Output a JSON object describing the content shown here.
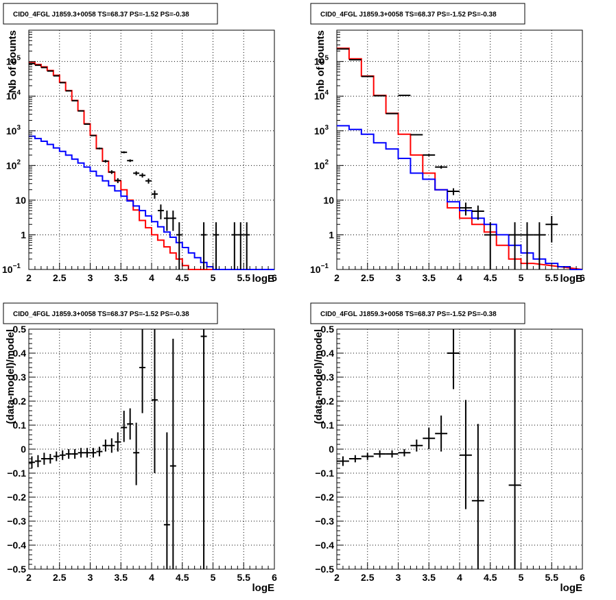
{
  "chart_data": [
    {
      "type": "histogram",
      "title": "CID0_4FGL J1859.3+0058 TS=68.37 PS=-1.52 PS=-0.38",
      "xlabel": "logE",
      "ylabel": "Nb of counts",
      "xlim": [
        2,
        6
      ],
      "ylim": [
        0.1,
        800000
      ],
      "yscale": "log",
      "xticks": [
        "2",
        "2.5",
        "3",
        "3.5",
        "4",
        "4.5",
        "5",
        "5.5",
        "6"
      ],
      "yticks": [
        {
          "value": 0.1,
          "base": "10",
          "exp": "−1"
        },
        {
          "value": 1,
          "base": "1",
          "exp": ""
        },
        {
          "value": 10,
          "base": "10",
          "exp": ""
        },
        {
          "value": 100,
          "base": "10",
          "exp": "2"
        },
        {
          "value": 1000,
          "base": "10",
          "exp": "3"
        },
        {
          "value": 10000,
          "base": "10",
          "exp": "4"
        },
        {
          "value": 100000,
          "base": "10",
          "exp": "5"
        }
      ],
      "grid": true,
      "series": [
        {
          "color": "#ff0000",
          "kind": "step",
          "x0": 2.0,
          "dx": 0.1,
          "values": [
            92000,
            82000,
            70000,
            55000,
            40000,
            25000,
            14500,
            7500,
            3800,
            1600,
            740,
            305,
            133,
            64,
            36,
            20,
            10,
            5.2,
            2.6,
            1.6,
            1.0,
            0.7,
            0.45,
            0.3,
            0.2,
            0.13,
            0.1
          ]
        },
        {
          "color": "#0000ff",
          "kind": "step",
          "x0": 2.0,
          "dx": 0.1,
          "values": [
            700,
            600,
            500,
            405,
            322,
            255,
            198,
            152,
            118,
            90,
            68,
            50,
            36,
            26,
            18.5,
            13,
            9.5,
            6.8,
            5.0,
            3.5,
            2.4,
            1.7,
            1.2,
            0.85,
            0.6,
            0.43,
            0.3,
            0.22,
            0.16,
            0.12,
            0.1
          ]
        },
        {
          "color": "#000000",
          "kind": "points",
          "points": [
            {
              "x": 2.05,
              "y": 87000,
              "lo": 86500,
              "hi": 87500
            },
            {
              "x": 2.15,
              "y": 78000,
              "lo": 77500,
              "hi": 78500
            },
            {
              "x": 2.25,
              "y": 67000,
              "lo": 66500,
              "hi": 67500
            },
            {
              "x": 2.35,
              "y": 53000,
              "lo": 52500,
              "hi": 53500
            },
            {
              "x": 2.45,
              "y": 38500,
              "lo": 38200,
              "hi": 38800
            },
            {
              "x": 2.55,
              "y": 24500,
              "lo": 24300,
              "hi": 24700
            },
            {
              "x": 2.65,
              "y": 14200,
              "lo": 14050,
              "hi": 14350
            },
            {
              "x": 2.75,
              "y": 7400,
              "lo": 7300,
              "hi": 7500
            },
            {
              "x": 2.85,
              "y": 3750,
              "lo": 3700,
              "hi": 3800
            },
            {
              "x": 2.95,
              "y": 1560,
              "lo": 1520,
              "hi": 1600
            },
            {
              "x": 3.05,
              "y": 730,
              "lo": 705,
              "hi": 755
            },
            {
              "x": 3.15,
              "y": 310,
              "lo": 292,
              "hi": 328
            },
            {
              "x": 3.25,
              "y": 133,
              "lo": 121,
              "hi": 145
            },
            {
              "x": 3.35,
              "y": 65,
              "lo": 57,
              "hi": 73
            },
            {
              "x": 3.45,
              "y": 37,
              "lo": 31,
              "hi": 43
            },
            {
              "x": 3.55,
              "y": 240,
              "lo": 225,
              "hi": 256
            },
            {
              "x": 3.65,
              "y": 138,
              "lo": 126,
              "hi": 150
            },
            {
              "x": 3.75,
              "y": 60,
              "lo": 52,
              "hi": 68
            },
            {
              "x": 3.85,
              "y": 52,
              "lo": 45,
              "hi": 60
            },
            {
              "x": 3.95,
              "y": 36,
              "lo": 30,
              "hi": 42
            },
            {
              "x": 4.05,
              "y": 15,
              "lo": 11,
              "hi": 19
            },
            {
              "x": 4.15,
              "y": 5,
              "lo": 2.8,
              "hi": 7.5
            },
            {
              "x": 4.25,
              "y": 3,
              "lo": 1.3,
              "hi": 5
            },
            {
              "x": 4.35,
              "y": 3,
              "lo": 1.3,
              "hi": 5
            },
            {
              "x": 4.45,
              "y": 1,
              "lo": 0.1,
              "hi": 2.3
            },
            {
              "x": 4.85,
              "y": 1,
              "lo": 0.1,
              "hi": 2.3
            },
            {
              "x": 5.05,
              "y": 1,
              "lo": 0.1,
              "hi": 2.3
            },
            {
              "x": 5.35,
              "y": 1,
              "lo": 0.1,
              "hi": 2.3
            },
            {
              "x": 5.45,
              "y": 1,
              "lo": 0.1,
              "hi": 2.3
            },
            {
              "x": 5.55,
              "y": 1,
              "lo": 0.1,
              "hi": 2.3
            }
          ]
        }
      ]
    },
    {
      "type": "histogram",
      "title": "CID0_4FGL J1859.3+0058 TS=68.37 PS=-1.52 PS=-0.38",
      "xlabel": "logE",
      "ylabel": "nb of counts",
      "xlim": [
        2,
        6
      ],
      "ylim": [
        0.1,
        800000
      ],
      "yscale": "log",
      "xticks": [
        "2",
        "2.5",
        "3",
        "3.5",
        "4",
        "4.5",
        "5",
        "5.5",
        "6"
      ],
      "yticks": [
        {
          "value": 0.1,
          "base": "10",
          "exp": "−1"
        },
        {
          "value": 1,
          "base": "1",
          "exp": ""
        },
        {
          "value": 10,
          "base": "10",
          "exp": ""
        },
        {
          "value": 100,
          "base": "10",
          "exp": "2"
        },
        {
          "value": 1000,
          "base": "10",
          "exp": "3"
        },
        {
          "value": 10000,
          "base": "10",
          "exp": "4"
        },
        {
          "value": 100000,
          "base": "10",
          "exp": "5"
        }
      ],
      "grid": true,
      "series": [
        {
          "color": "#ff0000",
          "kind": "step",
          "x0": 2.0,
          "dx": 0.2,
          "values": [
            240000,
            120000,
            38000,
            10500,
            3200,
            800,
            200,
            60,
            20,
            6,
            3,
            2,
            1.2,
            0.5,
            0.2,
            0.15
          ]
        },
        {
          "color": "#0000ff",
          "kind": "step",
          "x0": 2.0,
          "dx": 0.2,
          "values": [
            1400,
            1100,
            800,
            450,
            300,
            160,
            60,
            40,
            20,
            9,
            5,
            3,
            2,
            1,
            0.5,
            0.3,
            0.2,
            0.15,
            0.12,
            0.1
          ]
        },
        {
          "color": "#000000",
          "kind": "points",
          "points": [
            {
              "x": 2.1,
              "y": 230000,
              "lo": 229000,
              "hi": 231000
            },
            {
              "x": 2.3,
              "y": 112000,
              "lo": 111500,
              "hi": 112500
            },
            {
              "x": 2.5,
              "y": 37000,
              "lo": 36800,
              "hi": 37200
            },
            {
              "x": 2.7,
              "y": 10300,
              "lo": 10200,
              "hi": 10400
            },
            {
              "x": 2.9,
              "y": 3150,
              "lo": 3100,
              "hi": 3200
            },
            {
              "x": 3.1,
              "y": 10500,
              "lo": 10400,
              "hi": 10600
            },
            {
              "x": 3.3,
              "y": 770,
              "lo": 745,
              "hi": 795
            },
            {
              "x": 3.5,
              "y": 200,
              "lo": 186,
              "hi": 214
            },
            {
              "x": 3.7,
              "y": 90,
              "lo": 81,
              "hi": 99
            },
            {
              "x": 3.9,
              "y": 18,
              "lo": 14,
              "hi": 22
            },
            {
              "x": 4.1,
              "y": 6,
              "lo": 3.6,
              "hi": 8.5
            },
            {
              "x": 4.3,
              "y": 4.8,
              "lo": 2.7,
              "hi": 7
            },
            {
              "x": 4.5,
              "y": 1,
              "lo": 0.1,
              "hi": 2.3
            },
            {
              "x": 4.9,
              "y": 1,
              "lo": 0.1,
              "hi": 2.3
            },
            {
              "x": 5.1,
              "y": 1,
              "lo": 0.1,
              "hi": 2.3
            },
            {
              "x": 5.3,
              "y": 1,
              "lo": 0.1,
              "hi": 2.3
            },
            {
              "x": 5.5,
              "y": 2,
              "lo": 0.6,
              "hi": 3.5
            }
          ]
        }
      ]
    },
    {
      "type": "scatter",
      "title": "CID0_4FGL J1859.3+0058 TS=68.37 PS=-1.52 PS=-0.38",
      "xlabel": "logE",
      "ylabel": "(data-model)/model",
      "xlim": [
        2,
        6
      ],
      "ylim": [
        -0.5,
        0.5
      ],
      "yscale": "linear",
      "xticks": [
        "2",
        "2.5",
        "3",
        "3.5",
        "4",
        "4.5",
        "5",
        "5.5",
        "6"
      ],
      "yticks": [
        {
          "value": -0.5,
          "label": "−0.5"
        },
        {
          "value": -0.4,
          "label": "−0.4"
        },
        {
          "value": -0.3,
          "label": "−0.3"
        },
        {
          "value": -0.2,
          "label": "−0.2"
        },
        {
          "value": -0.1,
          "label": "−0.1"
        },
        {
          "value": 0,
          "label": "0"
        },
        {
          "value": 0.1,
          "label": "0.1"
        },
        {
          "value": 0.2,
          "label": "0.2"
        },
        {
          "value": 0.3,
          "label": "0.3"
        },
        {
          "value": 0.4,
          "label": "0.4"
        },
        {
          "value": 0.5,
          "label": "0.5"
        }
      ],
      "grid": true,
      "series": [
        {
          "color": "#000000",
          "kind": "points",
          "halfwidth": 0.05,
          "points": [
            {
              "x": 2.05,
              "y": -0.055,
              "lo": -0.08,
              "hi": -0.03
            },
            {
              "x": 2.15,
              "y": -0.05,
              "lo": -0.075,
              "hi": -0.025
            },
            {
              "x": 2.25,
              "y": -0.04,
              "lo": -0.065,
              "hi": -0.015
            },
            {
              "x": 2.35,
              "y": -0.04,
              "lo": -0.06,
              "hi": -0.02
            },
            {
              "x": 2.45,
              "y": -0.03,
              "lo": -0.05,
              "hi": -0.01
            },
            {
              "x": 2.55,
              "y": -0.025,
              "lo": -0.045,
              "hi": -0.005
            },
            {
              "x": 2.65,
              "y": -0.02,
              "lo": -0.04,
              "hi": 0.0
            },
            {
              "x": 2.75,
              "y": -0.02,
              "lo": -0.04,
              "hi": 0.0
            },
            {
              "x": 2.85,
              "y": -0.015,
              "lo": -0.035,
              "hi": 0.005
            },
            {
              "x": 2.95,
              "y": -0.015,
              "lo": -0.035,
              "hi": 0.005
            },
            {
              "x": 3.05,
              "y": -0.015,
              "lo": -0.035,
              "hi": 0.005
            },
            {
              "x": 3.15,
              "y": -0.01,
              "lo": -0.03,
              "hi": 0.01
            },
            {
              "x": 3.25,
              "y": 0.015,
              "lo": -0.01,
              "hi": 0.04
            },
            {
              "x": 3.35,
              "y": 0.015,
              "lo": -0.015,
              "hi": 0.045
            },
            {
              "x": 3.45,
              "y": 0.03,
              "lo": -0.01,
              "hi": 0.07
            },
            {
              "x": 3.55,
              "y": 0.09,
              "lo": 0.03,
              "hi": 0.16
            },
            {
              "x": 3.65,
              "y": 0.105,
              "lo": 0.04,
              "hi": 0.17
            },
            {
              "x": 3.75,
              "y": -0.015,
              "lo": -0.15,
              "hi": 0.11
            },
            {
              "x": 3.85,
              "y": 0.34,
              "lo": 0.15,
              "hi": 0.5
            },
            {
              "x": 4.05,
              "y": 0.205,
              "lo": -0.1,
              "hi": 0.5
            },
            {
              "x": 4.25,
              "y": -0.315,
              "lo": -0.5,
              "hi": 0.07
            },
            {
              "x": 4.35,
              "y": -0.07,
              "lo": -0.5,
              "hi": 0.46
            },
            {
              "x": 4.85,
              "y": 0.47,
              "lo": -0.5,
              "hi": 0.5
            }
          ]
        }
      ]
    },
    {
      "type": "scatter",
      "title": "CID0_4FGL J1859.3+0058 TS=68.37 PS=-1.52 PS=-0.38",
      "xlabel": "logE",
      "ylabel": "(data-model)/model",
      "xlim": [
        2,
        6
      ],
      "ylim": [
        -0.5,
        0.5
      ],
      "yscale": "linear",
      "xticks": [
        "2",
        "2.5",
        "3",
        "3.5",
        "4",
        "4.5",
        "5",
        "5.5",
        "6"
      ],
      "yticks": [
        {
          "value": -0.5,
          "label": "−0.5"
        },
        {
          "value": -0.4,
          "label": "−0.4"
        },
        {
          "value": -0.3,
          "label": "−0.3"
        },
        {
          "value": -0.2,
          "label": "−0.2"
        },
        {
          "value": -0.1,
          "label": "−0.1"
        },
        {
          "value": 0,
          "label": "0"
        },
        {
          "value": 0.1,
          "label": "0.1"
        },
        {
          "value": 0.2,
          "label": "0.2"
        },
        {
          "value": 0.3,
          "label": "0.3"
        },
        {
          "value": 0.4,
          "label": "0.4"
        },
        {
          "value": 0.5,
          "label": "0.5"
        }
      ],
      "grid": true,
      "series": [
        {
          "color": "#000000",
          "kind": "points",
          "halfwidth": 0.1,
          "points": [
            {
              "x": 2.1,
              "y": -0.05,
              "lo": -0.07,
              "hi": -0.03
            },
            {
              "x": 2.3,
              "y": -0.04,
              "lo": -0.055,
              "hi": -0.025
            },
            {
              "x": 2.5,
              "y": -0.03,
              "lo": -0.045,
              "hi": -0.015
            },
            {
              "x": 2.7,
              "y": -0.02,
              "lo": -0.035,
              "hi": -0.005
            },
            {
              "x": 2.9,
              "y": -0.02,
              "lo": -0.035,
              "hi": -0.005
            },
            {
              "x": 3.1,
              "y": -0.015,
              "lo": -0.03,
              "hi": 0.0
            },
            {
              "x": 3.3,
              "y": 0.015,
              "lo": -0.01,
              "hi": 0.04
            },
            {
              "x": 3.5,
              "y": 0.045,
              "lo": 0.0,
              "hi": 0.09
            },
            {
              "x": 3.7,
              "y": 0.065,
              "lo": -0.01,
              "hi": 0.14
            },
            {
              "x": 3.9,
              "y": 0.4,
              "lo": 0.25,
              "hi": 0.5
            },
            {
              "x": 4.1,
              "y": -0.025,
              "lo": -0.25,
              "hi": 0.205
            },
            {
              "x": 4.3,
              "y": -0.215,
              "lo": -0.5,
              "hi": 0.105
            },
            {
              "x": 4.9,
              "y": -0.15,
              "lo": -0.5,
              "hi": 0.5
            }
          ]
        }
      ]
    }
  ]
}
